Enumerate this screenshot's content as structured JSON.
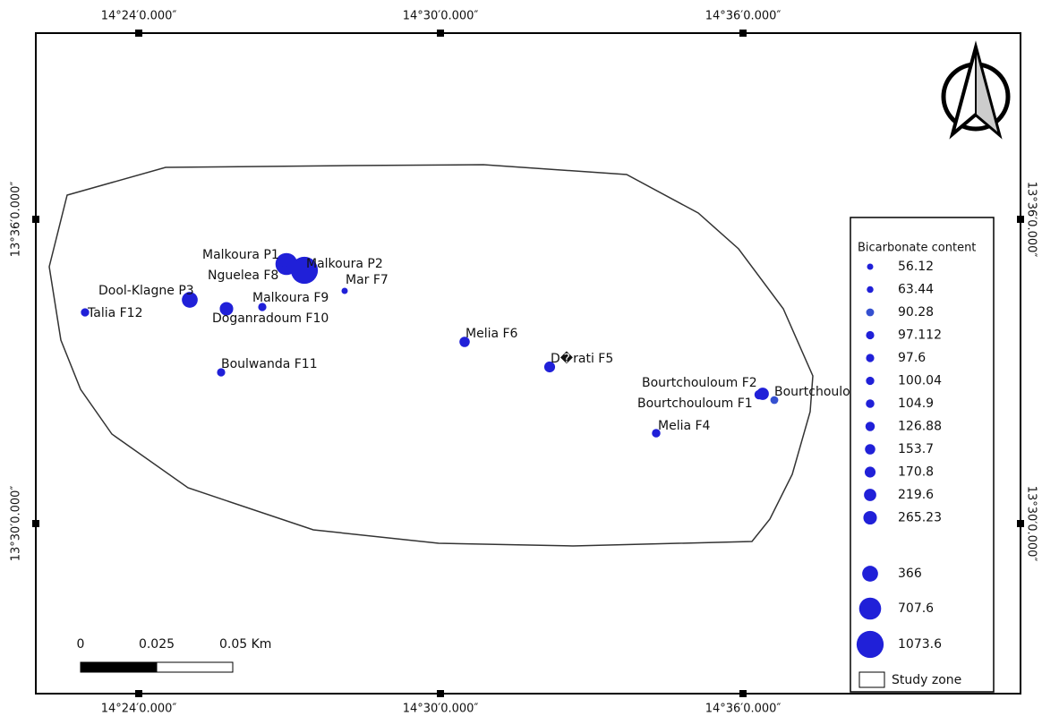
{
  "graticule": {
    "top": [
      "14°24′0.000″",
      "14°30′0.000″",
      "14°36′0.000″"
    ],
    "bottom": [
      "14°24′0.000″",
      "14°30′0.000″",
      "14°36′0.000″"
    ],
    "left": [
      "13°36′0.000″",
      "13°30′0.000″"
    ],
    "right": [
      "13°36′0.000″",
      "13°30′0.000″"
    ]
  },
  "points": [
    {
      "label": "Malkoura P1",
      "value": 707.6
    },
    {
      "label": "Malkoura P2",
      "value": 1073.6
    },
    {
      "label": "Nguelea F8",
      "value": 63.44
    },
    {
      "label": "Mar F7",
      "value": 56.12
    },
    {
      "label": "Dool-Klagne P3",
      "value": 366
    },
    {
      "label": "Malkoura F9",
      "value": 97.112
    },
    {
      "label": "Talia F12",
      "value": 100.04
    },
    {
      "label": "Doganradoum F10",
      "value": 265.23
    },
    {
      "label": "Melia F6",
      "value": 153.7
    },
    {
      "label": "D�rati F5",
      "value": 170.8
    },
    {
      "label": "Boulwanda F11",
      "value": 97.6
    },
    {
      "label": "Bourtchouloum F2",
      "value": 219.6
    },
    {
      "label": "Bourtchoulo",
      "value": 90.28
    },
    {
      "label": "Bourtchouloum F1",
      "value": 126.88
    },
    {
      "label": "Melia F4",
      "value": 104.9
    }
  ],
  "legend": {
    "title": "Bicarbonate content",
    "entries": [
      {
        "value": 56.12,
        "color": "#2020d8"
      },
      {
        "value": 63.44,
        "color": "#2020d8"
      },
      {
        "value": 90.28,
        "color": "#3550d0"
      },
      {
        "value": 97.112,
        "color": "#2020d8"
      },
      {
        "value": 97.6,
        "color": "#2020d8"
      },
      {
        "value": 100.04,
        "color": "#2020d8"
      },
      {
        "value": 104.9,
        "color": "#2020d8"
      },
      {
        "value": 126.88,
        "color": "#2020d8"
      },
      {
        "value": 153.7,
        "color": "#2020d8"
      },
      {
        "value": 170.8,
        "color": "#2020d8"
      },
      {
        "value": 219.6,
        "color": "#2020d8"
      },
      {
        "value": 265.23,
        "color": "#2020d8"
      },
      {
        "value": 366,
        "color": "#2020d8"
      },
      {
        "value": 707.6,
        "color": "#2020d8"
      },
      {
        "value": 1073.6,
        "color": "#2020d8"
      }
    ],
    "study_zone": "Study zone"
  },
  "scale_bar": {
    "labels": [
      "0",
      "0.025",
      "0.05 Km"
    ]
  }
}
